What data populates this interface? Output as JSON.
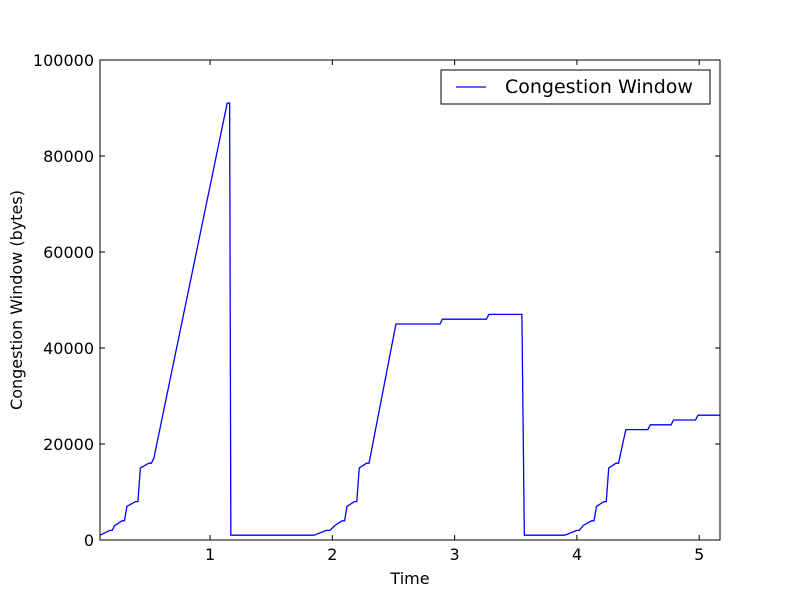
{
  "chart_data": {
    "type": "line",
    "title": "",
    "xlabel": "Time",
    "ylabel": "Congestion Window (bytes)",
    "xlim": [
      0.1,
      5.17
    ],
    "ylim": [
      0,
      100000
    ],
    "x_ticks": [
      1,
      2,
      3,
      4,
      5
    ],
    "x_tick_labels": [
      "1",
      "2",
      "3",
      "4",
      "5"
    ],
    "y_ticks": [
      0,
      20000,
      40000,
      60000,
      80000,
      100000
    ],
    "y_tick_labels": [
      "0",
      "20000",
      "40000",
      "60000",
      "80000",
      "100000"
    ],
    "grid": false,
    "legend": "top-right",
    "series": [
      {
        "name": "Congestion Window",
        "color": "#0000ff",
        "x": [
          0.1,
          0.18,
          0.2,
          0.22,
          0.28,
          0.3,
          0.32,
          0.39,
          0.41,
          0.43,
          0.5,
          0.52,
          0.54,
          1.14,
          1.16,
          1.17,
          1.85,
          1.95,
          1.98,
          2.02,
          2.08,
          2.1,
          2.12,
          2.18,
          2.2,
          2.22,
          2.28,
          2.3,
          2.52,
          2.54,
          2.88,
          2.9,
          3.26,
          3.28,
          3.55,
          3.57,
          3.9,
          4.0,
          4.02,
          4.05,
          4.12,
          4.14,
          4.16,
          4.22,
          4.24,
          4.26,
          4.32,
          4.34,
          4.4,
          4.42,
          4.58,
          4.6,
          4.77,
          4.79,
          4.97,
          4.99,
          5.17
        ],
        "y": [
          1000,
          2000,
          2000,
          3000,
          4000,
          4000,
          7000,
          8000,
          8000,
          15000,
          16000,
          16000,
          17000,
          91000,
          91000,
          1000,
          1000,
          2000,
          2000,
          3000,
          4000,
          4000,
          7000,
          8000,
          8000,
          15000,
          16000,
          16000,
          45000,
          45000,
          45000,
          46000,
          46000,
          47000,
          47000,
          1000,
          1000,
          2000,
          2000,
          3000,
          4000,
          4000,
          7000,
          8000,
          8000,
          15000,
          16000,
          16000,
          23000,
          23000,
          23000,
          24000,
          24000,
          25000,
          25000,
          26000,
          26000
        ]
      }
    ]
  }
}
